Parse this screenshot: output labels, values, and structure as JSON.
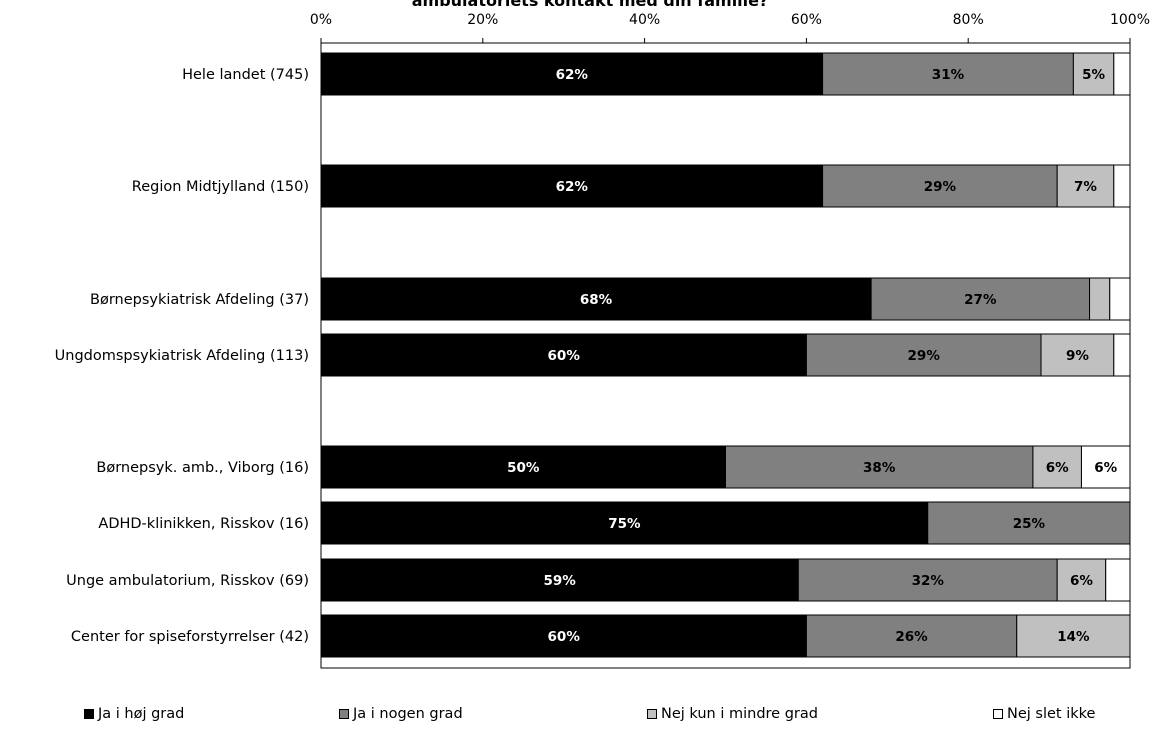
{
  "chart_data": {
    "type": "bar",
    "orientation": "horizontal",
    "stacked": true,
    "title": "ambulatoriets kontakt med din familie?",
    "xlim": [
      0,
      100
    ],
    "x_ticks": [
      "0%",
      "20%",
      "40%",
      "60%",
      "80%",
      "100%"
    ],
    "grid": false,
    "legend_position": "bottom",
    "categories": [
      "Hele landet (745)",
      "Region Midtjylland (150)",
      "Børnepsykiatrisk Afdeling (37)",
      "Ungdomspsykiatrisk Afdeling (113)",
      "Børnepsyk. amb., Viborg (16)",
      "ADHD-klinikken, Risskov (16)",
      "Unge ambulatorium, Risskov (69)",
      "Center for spiseforstyrrelser (42)"
    ],
    "series": [
      {
        "name": "Ja i høj grad",
        "color": "#000000",
        "label_color": "#ffffff",
        "values": [
          62,
          62,
          68,
          60,
          50,
          75,
          59,
          60
        ],
        "labels": [
          "62%",
          "62%",
          "68%",
          "60%",
          "50%",
          "75%",
          "59%",
          "60%"
        ]
      },
      {
        "name": "Ja i nogen grad",
        "color": "#808080",
        "label_color": "#000000",
        "values": [
          31,
          29,
          27,
          29,
          38,
          25,
          32,
          26
        ],
        "labels": [
          "31%",
          "29%",
          "27%",
          "29%",
          "38%",
          "25%",
          "32%",
          "26%"
        ]
      },
      {
        "name": "Nej kun i mindre grad",
        "color": "#c0c0c0",
        "label_color": "#000000",
        "values": [
          5,
          7,
          2.5,
          9,
          6,
          0,
          6,
          14
        ],
        "labels": [
          "5%",
          "7%",
          "",
          "9%",
          "6%",
          "",
          "6%",
          "14%"
        ]
      },
      {
        "name": "Nej slet ikke",
        "color": "#ffffff",
        "label_color": "#000000",
        "values": [
          2,
          2,
          2.5,
          2,
          6,
          0,
          3,
          0
        ],
        "labels": [
          "",
          "",
          "",
          "",
          "6%",
          "",
          "",
          ""
        ]
      }
    ]
  }
}
